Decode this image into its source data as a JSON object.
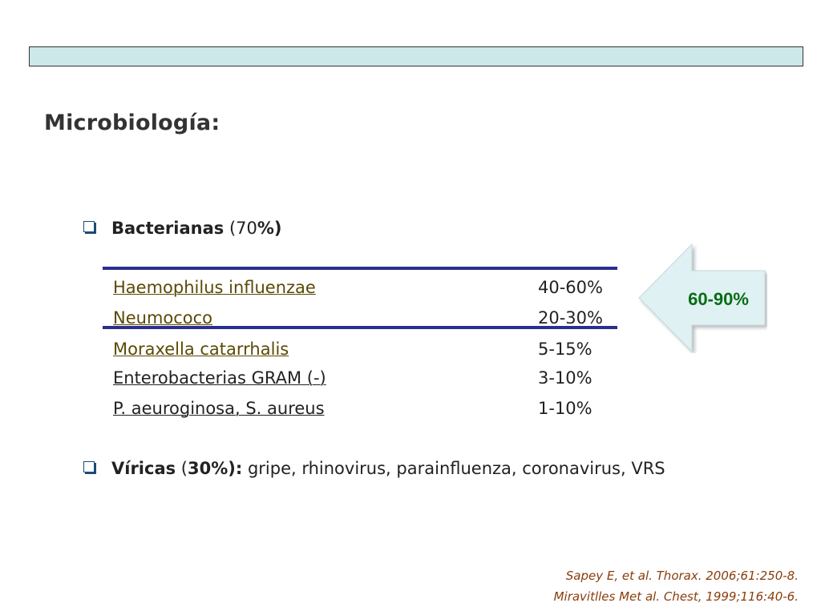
{
  "slide": {
    "title": "Microbiología:",
    "header_color": "#cde8e9"
  },
  "bacteria": {
    "label": "Bacterianas",
    "pct_open": " (70",
    "pct_close": "%)",
    "rows": [
      {
        "name": "Haemophilus influenzae",
        "pct": "40-60%"
      },
      {
        "name": "Neumococo",
        "pct": "20-30%"
      },
      {
        "name": "Moraxella catarrhalis",
        "pct": "5-15%"
      },
      {
        "name": "Enterobacterias GRAM (-)",
        "pct": "3-10%"
      },
      {
        "name": "P. aeuroginosa, S. aureus",
        "pct": "1-10%"
      }
    ]
  },
  "arrow": {
    "label": "60-90%",
    "fill": "#dff1f2",
    "text_color": "#0a6b16"
  },
  "viral": {
    "label": "Víricas",
    "pct_open": " (",
    "pct_bold": "30%):",
    "rest": " gripe, rhinovirus, parainfluenza, coronavirus, VRS"
  },
  "references": [
    "Sapey E, et al. Thorax. 2006;61:250-8.",
    "Miravitlles Met al. Chest, 1999;116:40-6."
  ],
  "icons": {
    "bullet": "checkbox-bullet-icon",
    "arrow": "left-arrow-icon"
  }
}
